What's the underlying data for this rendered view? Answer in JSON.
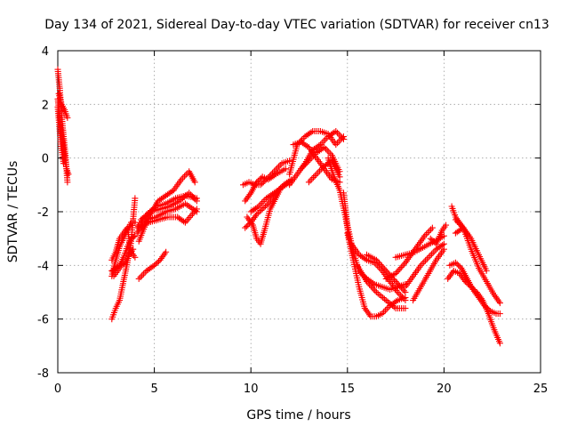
{
  "chart_data": {
    "type": "scatter",
    "title": "Day 134 of 2021, Sidereal Day-to-day VTEC variation (SDTVAR) for receiver cn13",
    "xlabel": "GPS time / hours",
    "ylabel": "SDTVAR / TECUs",
    "xlim": [
      0,
      25
    ],
    "ylim": [
      -8,
      4
    ],
    "xticks": [
      0,
      5,
      10,
      15,
      20,
      25
    ],
    "yticks": [
      -8,
      -6,
      -4,
      -2,
      0,
      2,
      4
    ],
    "grid": true,
    "marker": "plus",
    "colors": {
      "series": "#ff0000"
    },
    "traces": [
      {
        "x": [
          0.0,
          0.1,
          0.2,
          0.3,
          0.4,
          0.5
        ],
        "y": [
          3.3,
          2.6,
          1.6,
          0.8,
          0.1,
          -0.9
        ]
      },
      {
        "x": [
          0.0,
          0.1,
          0.2,
          0.3,
          0.45,
          0.55
        ],
        "y": [
          2.2,
          1.6,
          0.9,
          0.3,
          -0.4,
          -0.6
        ]
      },
      {
        "x": [
          0.05,
          0.2,
          0.35,
          0.5
        ],
        "y": [
          2.4,
          2.0,
          1.8,
          1.5
        ]
      },
      {
        "x": [
          0.0,
          0.15,
          0.3
        ],
        "y": [
          1.9,
          0.6,
          -0.2
        ]
      },
      {
        "x": [
          2.8,
          3.0,
          3.2,
          3.4,
          3.6,
          3.8,
          4.0
        ],
        "y": [
          -6.0,
          -5.6,
          -5.3,
          -4.6,
          -3.9,
          -3.1,
          -1.5
        ]
      },
      {
        "x": [
          2.8,
          3.0,
          3.2,
          3.4,
          3.6,
          3.8,
          4.0
        ],
        "y": [
          -4.4,
          -3.8,
          -3.3,
          -3.0,
          -2.7,
          -2.4,
          -2.4
        ]
      },
      {
        "x": [
          2.8,
          3.0,
          3.2,
          3.4,
          3.6,
          3.8,
          4.0
        ],
        "y": [
          -4.2,
          -4.1,
          -4.0,
          -3.7,
          -3.3,
          -3.0,
          -2.9
        ]
      },
      {
        "x": [
          2.8,
          3.0,
          3.2,
          3.4,
          3.6,
          3.8,
          4.0
        ],
        "y": [
          -3.8,
          -3.5,
          -3.0,
          -2.8,
          -2.6,
          -3.5,
          -3.7
        ]
      },
      {
        "x": [
          2.9,
          3.1,
          3.3,
          3.5,
          3.7,
          3.9
        ],
        "y": [
          -4.4,
          -4.2,
          -4.0,
          -3.9,
          -3.6,
          -3.4
        ]
      },
      {
        "x": [
          4.2,
          4.6,
          5.0,
          5.3,
          5.6
        ],
        "y": [
          -4.5,
          -4.2,
          -4.0,
          -3.8,
          -3.5
        ]
      },
      {
        "x": [
          4.1,
          4.6,
          5.1,
          5.6,
          6.1,
          6.6,
          7.2
        ],
        "y": [
          -2.6,
          -2.1,
          -1.8,
          -1.7,
          -1.5,
          -1.4,
          -1.5
        ]
      },
      {
        "x": [
          4.1,
          4.6,
          5.1,
          5.6,
          6.1,
          6.6,
          7.2
        ],
        "y": [
          -2.8,
          -2.3,
          -2.2,
          -2.0,
          -1.9,
          -1.7,
          -2.0
        ]
      },
      {
        "x": [
          4.2,
          4.7,
          5.2,
          5.7,
          6.2,
          6.6,
          7.2
        ],
        "y": [
          -2.6,
          -2.4,
          -2.3,
          -2.2,
          -2.2,
          -2.4,
          -1.9
        ]
      },
      {
        "x": [
          4.2,
          4.7,
          5.2,
          5.6,
          6.0,
          6.4,
          6.8,
          7.1
        ],
        "y": [
          -3.1,
          -2.2,
          -1.6,
          -1.4,
          -1.2,
          -0.8,
          -0.5,
          -0.9
        ]
      },
      {
        "x": [
          4.3,
          4.8,
          5.3,
          5.8,
          6.3,
          6.8,
          7.2
        ],
        "y": [
          -2.3,
          -2.0,
          -1.9,
          -1.8,
          -1.6,
          -1.3,
          -1.6
        ]
      },
      {
        "x": [
          9.6,
          9.9,
          10.2,
          10.5,
          10.8,
          11.2,
          11.6,
          12.0
        ],
        "y": [
          -1.0,
          -0.9,
          -1.0,
          -1.0,
          -0.8,
          -0.5,
          -0.2,
          -0.1
        ]
      },
      {
        "x": [
          9.7,
          10.0,
          10.3,
          10.6,
          10.9,
          11.3,
          11.8
        ],
        "y": [
          -1.6,
          -1.3,
          -0.9,
          -0.7,
          -0.8,
          -0.6,
          -0.4
        ]
      },
      {
        "x": [
          9.7,
          10.0,
          10.3,
          10.6,
          10.9,
          11.3,
          11.7,
          12.1
        ],
        "y": [
          -2.6,
          -2.4,
          -2.1,
          -1.9,
          -1.7,
          -1.3,
          -1.0,
          -0.8
        ]
      },
      {
        "x": [
          9.8,
          10.1,
          10.3,
          10.5,
          10.7,
          11.0,
          11.5
        ],
        "y": [
          -2.2,
          -2.5,
          -3.0,
          -3.2,
          -2.7,
          -1.9,
          -1.2
        ]
      },
      {
        "x": [
          10.0,
          10.4,
          10.8,
          11.2,
          11.6,
          12.0
        ],
        "y": [
          -2.0,
          -1.8,
          -1.5,
          -1.3,
          -1.1,
          -0.9
        ]
      },
      {
        "x": [
          12.0,
          12.4,
          12.8,
          13.2,
          13.6,
          14.0,
          14.4,
          14.8
        ],
        "y": [
          -0.6,
          0.5,
          0.8,
          1.0,
          1.0,
          0.9,
          0.5,
          0.8
        ]
      },
      {
        "x": [
          12.0,
          12.4,
          12.8,
          13.2,
          13.6,
          14.0,
          14.4,
          14.8
        ],
        "y": [
          -1.0,
          -0.6,
          -0.2,
          0.3,
          0.5,
          0.8,
          1.0,
          0.7
        ]
      },
      {
        "x": [
          12.2,
          12.6,
          13.0,
          13.4,
          13.8,
          14.2,
          14.6
        ],
        "y": [
          0.5,
          0.6,
          0.4,
          0.0,
          -0.4,
          -0.8,
          -0.9
        ]
      },
      {
        "x": [
          12.6,
          13.0,
          13.4,
          13.8,
          14.2,
          14.6
        ],
        "y": [
          -0.4,
          -0.1,
          0.2,
          0.4,
          0.1,
          -0.5
        ]
      },
      {
        "x": [
          13.0,
          13.4,
          13.8,
          14.2,
          14.6
        ],
        "y": [
          -0.9,
          -0.6,
          -0.3,
          -0.1,
          -0.7
        ]
      },
      {
        "x": [
          14.0,
          14.3,
          14.6,
          14.9,
          15.1
        ],
        "y": [
          0.0,
          -0.7,
          -1.2,
          -2.2,
          -3.0
        ]
      },
      {
        "x": [
          14.8,
          15.0,
          15.3,
          15.6,
          16.0,
          16.4,
          16.8,
          17.2,
          17.6,
          18.0
        ],
        "y": [
          -1.3,
          -2.5,
          -3.5,
          -4.2,
          -4.5,
          -4.7,
          -4.8,
          -4.9,
          -4.8,
          -4.7
        ]
      },
      {
        "x": [
          15.0,
          15.3,
          15.6,
          15.9,
          16.2,
          16.5,
          16.8,
          17.2,
          17.6,
          18.0
        ],
        "y": [
          -2.8,
          -3.8,
          -4.8,
          -5.6,
          -5.9,
          -5.9,
          -5.8,
          -5.5,
          -5.3,
          -5.2
        ]
      },
      {
        "x": [
          15.2,
          15.6,
          16.0,
          16.4,
          16.8,
          17.2,
          17.6,
          18.0
        ],
        "y": [
          -3.2,
          -3.6,
          -3.8,
          -3.9,
          -4.2,
          -4.6,
          -5.0,
          -5.3
        ]
      },
      {
        "x": [
          15.5,
          16.0,
          16.5,
          17.0,
          17.5,
          18.0
        ],
        "y": [
          -4.0,
          -4.6,
          -5.0,
          -5.3,
          -5.6,
          -5.6
        ]
      },
      {
        "x": [
          16.0,
          16.5,
          17.0,
          17.5,
          18.0
        ],
        "y": [
          -3.6,
          -3.8,
          -4.2,
          -4.6,
          -5.0
        ]
      },
      {
        "x": [
          17.0,
          17.5,
          18.0,
          18.5,
          19.0,
          19.4
        ],
        "y": [
          -4.5,
          -4.3,
          -3.9,
          -3.4,
          -2.9,
          -2.6
        ]
      },
      {
        "x": [
          17.5,
          18.0,
          18.5,
          19.0,
          19.5,
          20.0
        ],
        "y": [
          -3.7,
          -3.6,
          -3.5,
          -3.3,
          -3.1,
          -2.9
        ]
      },
      {
        "x": [
          18.0,
          18.4,
          18.8,
          19.2,
          19.6,
          20.0
        ],
        "y": [
          -4.8,
          -4.4,
          -4.0,
          -3.7,
          -3.4,
          -3.2
        ]
      },
      {
        "x": [
          18.4,
          18.8,
          19.2,
          19.6,
          20.0
        ],
        "y": [
          -5.3,
          -4.8,
          -4.3,
          -3.8,
          -3.4
        ]
      },
      {
        "x": [
          19.3,
          19.6,
          19.9,
          20.1
        ],
        "y": [
          -3.0,
          -3.2,
          -2.7,
          -2.5
        ]
      },
      {
        "x": [
          20.2,
          20.5,
          20.8,
          21.1,
          21.4,
          21.7,
          22.0,
          22.3,
          22.6,
          22.9
        ],
        "y": [
          -4.5,
          -4.2,
          -4.3,
          -4.6,
          -4.8,
          -5.0,
          -5.3,
          -5.8,
          -6.4,
          -6.9
        ]
      },
      {
        "x": [
          20.3,
          20.6,
          20.9,
          21.2,
          21.5,
          21.8,
          22.1,
          22.4,
          22.7,
          22.9
        ],
        "y": [
          -4.0,
          -3.9,
          -4.1,
          -4.5,
          -4.9,
          -5.2,
          -5.5,
          -5.7,
          -5.8,
          -5.8
        ]
      },
      {
        "x": [
          20.6,
          21.0,
          21.4,
          21.8,
          22.2,
          22.6,
          22.9
        ],
        "y": [
          -2.3,
          -2.6,
          -3.4,
          -4.1,
          -4.6,
          -5.1,
          -5.4
        ]
      },
      {
        "x": [
          20.6,
          21.0,
          21.4,
          21.8,
          22.2
        ],
        "y": [
          -2.8,
          -2.6,
          -3.0,
          -3.6,
          -4.2
        ]
      },
      {
        "x": [
          20.4,
          20.6,
          20.9,
          21.2
        ],
        "y": [
          -1.8,
          -2.2,
          -2.5,
          -2.9
        ]
      }
    ]
  }
}
